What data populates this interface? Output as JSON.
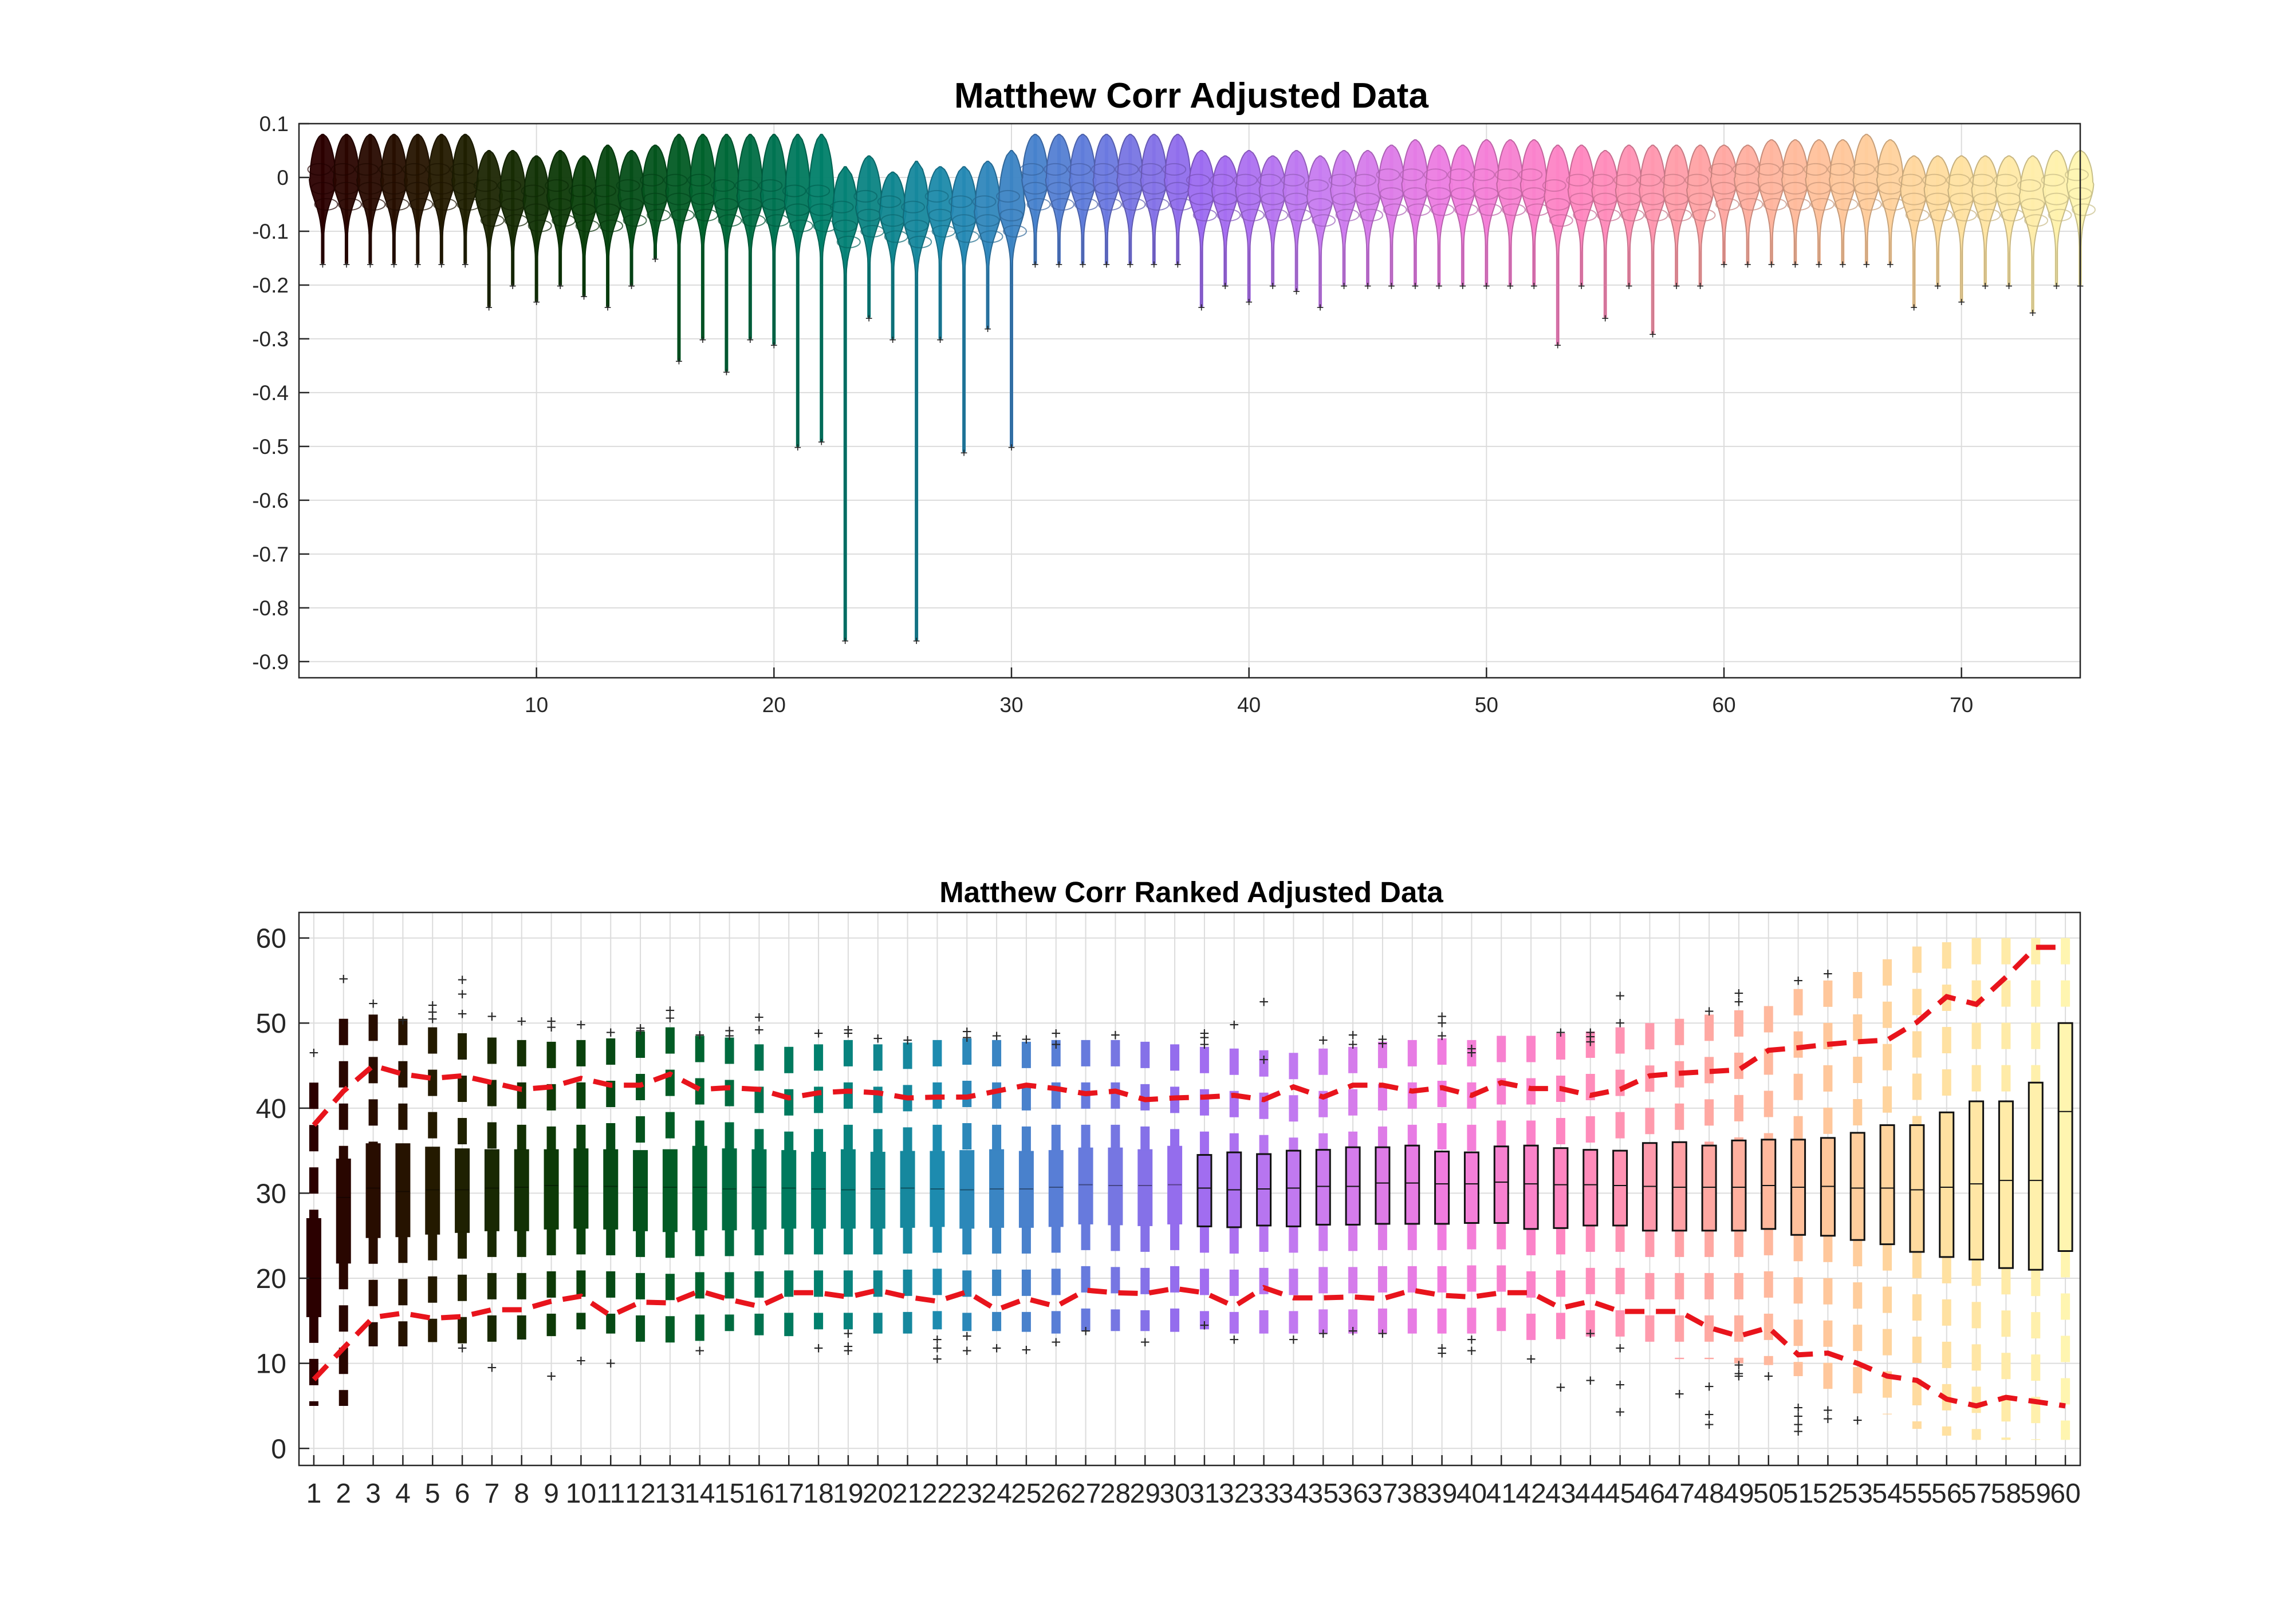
{
  "chart_data": [
    {
      "type": "violin",
      "title": "Matthew Corr Adjusted Data",
      "xlabel": "",
      "ylabel": "",
      "xlim": [
        0,
        75
      ],
      "ylim": [
        -0.93,
        0.1
      ],
      "xticks": [
        10,
        20,
        30,
        40,
        50,
        60,
        70
      ],
      "yticks": [
        0.1,
        0,
        -0.1,
        -0.2,
        -0.3,
        -0.4,
        -0.5,
        -0.6,
        -0.7,
        -0.8,
        -0.9
      ],
      "grid": true,
      "colormap": [
        "#2b0000",
        "#241b00",
        "#0a3d08",
        "#00612a",
        "#00806b",
        "#1e8bb0",
        "#5c7dd9",
        "#9c6bf0",
        "#c97cf0",
        "#f07ce0",
        "#ff86c0",
        "#ffa3a3",
        "#ffc49a",
        "#ffe0a0",
        "#fff5b0"
      ],
      "x": [
        1,
        2,
        3,
        4,
        5,
        6,
        7,
        8,
        9,
        10,
        11,
        12,
        13,
        14,
        15,
        16,
        17,
        18,
        19,
        20,
        21,
        22,
        23,
        24,
        25,
        26,
        27,
        28,
        29,
        30,
        31,
        32,
        33,
        34,
        35,
        36,
        37,
        38,
        39,
        40,
        41,
        42,
        43,
        44,
        45,
        46,
        47,
        48,
        49,
        50,
        51,
        52,
        53,
        54,
        55,
        56,
        57,
        58,
        59,
        60,
        61,
        62,
        63,
        64,
        65,
        66,
        67,
        68,
        69,
        70,
        71,
        72,
        73,
        74,
        75
      ],
      "max": [
        0.08,
        0.08,
        0.08,
        0.08,
        0.08,
        0.08,
        0.08,
        0.05,
        0.05,
        0.04,
        0.05,
        0.04,
        0.06,
        0.05,
        0.06,
        0.08,
        0.08,
        0.08,
        0.08,
        0.08,
        0.08,
        0.08,
        0.02,
        0.04,
        0.01,
        0.03,
        0.02,
        0.02,
        0.03,
        0.05,
        0.08,
        0.08,
        0.08,
        0.08,
        0.08,
        0.08,
        0.08,
        0.05,
        0.04,
        0.05,
        0.04,
        0.05,
        0.04,
        0.05,
        0.05,
        0.06,
        0.07,
        0.06,
        0.06,
        0.07,
        0.07,
        0.07,
        0.06,
        0.06,
        0.05,
        0.06,
        0.06,
        0.06,
        0.06,
        0.06,
        0.06,
        0.07,
        0.07,
        0.07,
        0.07,
        0.08,
        0.07,
        0.04,
        0.04,
        0.04,
        0.04,
        0.04,
        0.04,
        0.05,
        0.05
      ],
      "min": [
        -0.16,
        -0.16,
        -0.16,
        -0.16,
        -0.16,
        -0.16,
        -0.16,
        -0.24,
        -0.2,
        -0.23,
        -0.2,
        -0.22,
        -0.24,
        -0.2,
        -0.15,
        -0.34,
        -0.3,
        -0.36,
        -0.3,
        -0.31,
        -0.5,
        -0.49,
        -0.86,
        -0.26,
        -0.3,
        -0.86,
        -0.3,
        -0.51,
        -0.28,
        -0.5,
        -0.16,
        -0.16,
        -0.16,
        -0.16,
        -0.16,
        -0.16,
        -0.16,
        -0.24,
        -0.2,
        -0.23,
        -0.2,
        -0.21,
        -0.24,
        -0.2,
        -0.2,
        -0.2,
        -0.2,
        -0.2,
        -0.2,
        -0.2,
        -0.2,
        -0.2,
        -0.31,
        -0.2,
        -0.26,
        -0.2,
        -0.29,
        -0.2,
        -0.2,
        -0.16,
        -0.16,
        -0.16,
        -0.16,
        -0.16,
        -0.16,
        -0.16,
        -0.16,
        -0.24,
        -0.2,
        -0.23,
        -0.2,
        -0.2,
        -0.25,
        -0.2,
        -0.2
      ],
      "median": [
        0.0,
        0.0,
        0.0,
        0.0,
        0.0,
        0.0,
        0.0,
        -0.03,
        -0.03,
        -0.04,
        -0.03,
        -0.04,
        -0.04,
        -0.03,
        -0.02,
        -0.02,
        -0.02,
        -0.03,
        -0.03,
        -0.03,
        -0.04,
        -0.04,
        -0.07,
        -0.05,
        -0.06,
        -0.07,
        -0.05,
        -0.06,
        -0.06,
        -0.05,
        0.0,
        0.0,
        0.0,
        0.0,
        0.0,
        0.0,
        0.0,
        -0.02,
        -0.02,
        -0.02,
        -0.02,
        -0.02,
        -0.03,
        -0.02,
        -0.02,
        -0.01,
        -0.01,
        -0.01,
        -0.01,
        -0.01,
        -0.01,
        -0.01,
        -0.03,
        -0.02,
        -0.02,
        -0.02,
        -0.02,
        -0.02,
        -0.02,
        0.0,
        0.0,
        0.0,
        0.0,
        0.0,
        0.0,
        0.0,
        0.0,
        -0.02,
        -0.02,
        -0.02,
        -0.02,
        -0.02,
        -0.03,
        -0.02,
        -0.01
      ]
    },
    {
      "type": "boxplot",
      "title": "Matthew Corr Ranked Adjusted Data",
      "xlabel": "",
      "ylabel": "",
      "xlim": [
        0.5,
        60.5
      ],
      "ylim": [
        -2,
        63
      ],
      "yticks": [
        0,
        10,
        20,
        30,
        40,
        50,
        60
      ],
      "grid": true,
      "categories": [
        "1",
        "2",
        "3",
        "4",
        "5",
        "6",
        "7",
        "8",
        "9",
        "10",
        "11",
        "12",
        "13",
        "14",
        "15",
        "16",
        "17",
        "18",
        "19",
        "20",
        "21",
        "22",
        "23",
        "24",
        "25",
        "26",
        "27",
        "28",
        "29",
        "30",
        "31",
        "32",
        "33",
        "34",
        "35",
        "36",
        "37",
        "38",
        "39",
        "40",
        "41",
        "42",
        "43",
        "44",
        "45",
        "46",
        "47",
        "48",
        "49",
        "50",
        "51",
        "52",
        "53",
        "54",
        "55",
        "56",
        "57",
        "58",
        "59",
        "60"
      ],
      "q1": [
        15.5,
        21.8,
        24.8,
        24.9,
        25.2,
        25.4,
        25.6,
        25.6,
        25.8,
        25.9,
        25.8,
        25.6,
        25.5,
        25.7,
        25.7,
        25.8,
        25.9,
        25.9,
        25.9,
        25.9,
        26,
        26.1,
        25.9,
        26,
        26,
        26.1,
        26.4,
        26.3,
        26.2,
        26.4,
        26.1,
        26,
        26.2,
        26.1,
        26.3,
        26.3,
        26.4,
        26.4,
        26.4,
        26.5,
        26.5,
        25.8,
        25.9,
        26.2,
        26.2,
        25.6,
        25.6,
        25.6,
        25.6,
        25.8,
        25.1,
        25,
        24.5,
        24,
        23.1,
        22.5,
        22.2,
        21.2,
        21,
        23.2
      ],
      "median": [
        20,
        29.5,
        30.6,
        30.2,
        30.4,
        30.4,
        30.6,
        30.7,
        30.9,
        30.8,
        30.8,
        30.7,
        30.7,
        30.7,
        30.5,
        30.7,
        30.6,
        30.5,
        30.4,
        30.5,
        30.6,
        30.5,
        30.4,
        30.5,
        30.5,
        30.7,
        31,
        30.9,
        30.9,
        31,
        30.6,
        30.4,
        30.5,
        30.6,
        30.8,
        30.8,
        31.2,
        31.2,
        31.1,
        31.1,
        31.3,
        31.1,
        31,
        31,
        30.9,
        30.8,
        30.7,
        30.7,
        30.7,
        30.9,
        30.7,
        30.8,
        30.6,
        30.6,
        30.4,
        30.7,
        31.1,
        31.5,
        31.5,
        39.6
      ],
      "q3": [
        27,
        34,
        35.8,
        35.8,
        35.4,
        35.2,
        35.1,
        35.1,
        35.1,
        35.2,
        35.1,
        35,
        35.1,
        35.5,
        35.2,
        35.1,
        35,
        34.8,
        35.1,
        34.8,
        34.9,
        34.9,
        35,
        35.1,
        34.9,
        35,
        35.3,
        35.3,
        35.1,
        35.5,
        34.5,
        34.8,
        34.6,
        35,
        35.1,
        35.4,
        35.4,
        35.6,
        34.9,
        34.8,
        35.5,
        35.6,
        35.3,
        35.1,
        35,
        35.9,
        36,
        35.6,
        36.2,
        36.3,
        36.3,
        36.5,
        37.1,
        38,
        38,
        39.5,
        40.8,
        40.8,
        43,
        50
      ],
      "whislo": [
        5,
        5,
        12,
        12,
        12.5,
        12.3,
        12.5,
        12.8,
        13.2,
        14,
        13.5,
        12.3,
        11.5,
        12.5,
        13.8,
        13.3,
        13.2,
        14,
        14,
        13.5,
        13.5,
        14,
        13.8,
        13.8,
        13.7,
        13.5,
        13.8,
        13.8,
        13.8,
        13.7,
        14,
        13.5,
        13.5,
        13.5,
        13.5,
        13.5,
        13.5,
        13.5,
        13.5,
        13.5,
        13.8,
        12.5,
        12,
        12,
        11.8,
        11.8,
        10.5,
        10.5,
        10,
        9.8,
        8.5,
        7,
        5.5,
        4,
        2.3,
        1.5,
        1,
        1,
        1,
        1
      ],
      "whishi": [
        43,
        50.5,
        51,
        50.5,
        49.5,
        48.8,
        48.3,
        48,
        47.8,
        48,
        48.2,
        49,
        49.5,
        48.5,
        48.3,
        47.5,
        47.2,
        47.5,
        48,
        47.5,
        47.7,
        48,
        48.2,
        48,
        47.8,
        48,
        48,
        48,
        47.8,
        47.5,
        47.2,
        47,
        46.8,
        46.5,
        47,
        47.2,
        47.8,
        48,
        48.2,
        48,
        48.5,
        48.5,
        48.8,
        49,
        49.5,
        50,
        50.5,
        51,
        51.5,
        52,
        54,
        55,
        56,
        57.5,
        59,
        59.5,
        60,
        60,
        60,
        60
      ],
      "outliers": [
        [
          46.5
        ],
        [
          55.2
        ],
        [
          52.3
        ],
        [
          50.3
        ],
        [
          52.1,
          51.3,
          50.5
        ],
        [
          55.1,
          53.4,
          51.1,
          11.8
        ],
        [
          50.8,
          9.5
        ],
        [
          50.2
        ],
        [
          50.2,
          49.5,
          8.5
        ],
        [
          49.8,
          10.3
        ],
        [
          48.9,
          10
        ],
        [
          49.4,
          49.1
        ],
        [
          51.5,
          50.6
        ],
        [
          48.6,
          11.5
        ],
        [
          49.1,
          48.5
        ],
        [
          50.7,
          49.2
        ],
        [],
        [
          48.8,
          11.8
        ],
        [
          49.2,
          48.8,
          13.5,
          12,
          11.5
        ],
        [
          48.2
        ],
        [
          48
        ],
        [
          12.8,
          11.8,
          10.5
        ],
        [
          49,
          48.3,
          13.2,
          11.5
        ],
        [
          48.5,
          11.8
        ],
        [
          48.1,
          11.6
        ],
        [
          48.8,
          47.5,
          12.5
        ],
        [
          13.8
        ],
        [
          48.6
        ],
        [
          12.5
        ],
        [],
        [
          48.8,
          48.3,
          47.5,
          14.5
        ],
        [
          49.8,
          12.8
        ],
        [
          52.5,
          45.7
        ],
        [
          12.8
        ],
        [
          48,
          13.5
        ],
        [
          48.6,
          47.5,
          13.8
        ],
        [
          48.1,
          47.6,
          13.5
        ],
        [],
        [
          50.8,
          50,
          48.5,
          11.8,
          11.2
        ],
        [
          47,
          46.5,
          12.8,
          11.5
        ],
        [],
        [
          10.5
        ],
        [
          48.9,
          7.2
        ],
        [
          48.9,
          48.4,
          47.8,
          13.5,
          8
        ],
        [
          53.2,
          50,
          11.8,
          7.5,
          4.3
        ],
        [],
        [
          6.4
        ],
        [
          51.4,
          7.3,
          4,
          2.8
        ],
        [
          53.5,
          52.5,
          9.8,
          8.8,
          8.5
        ],
        [
          8.5
        ],
        [
          55,
          4.8,
          3.8,
          2.8,
          2
        ],
        [
          55.8,
          4.5,
          3.5
        ],
        [
          3.3
        ],
        [],
        [],
        [],
        [],
        [],
        [],
        []
      ],
      "percentile_upper": [
        38,
        42,
        45,
        44,
        43.5,
        43.8,
        43,
        42.2,
        42.5,
        43.5,
        42.7,
        42.7,
        44,
        42.2,
        42.4,
        42.2,
        41.2,
        41.8,
        42,
        41.8,
        41.2,
        41.3,
        41.3,
        42,
        42.7,
        42.3,
        41.7,
        42,
        41,
        41.2,
        41.3,
        41.5,
        41,
        42.5,
        41.3,
        42.7,
        42.7,
        42,
        42.4,
        41.5,
        43,
        42.3,
        42.3,
        41.5,
        42.2,
        43.8,
        44.1,
        44.3,
        44.5,
        46.8,
        47.1,
        47.5,
        47.8,
        48,
        50.1,
        53.1,
        52.2,
        55.4,
        58.9,
        58.9
      ],
      "percentile_lower": [
        8.1,
        11.8,
        15.4,
        15.9,
        15.3,
        15.5,
        16.3,
        16.3,
        17.3,
        17.9,
        15.6,
        17.2,
        17.1,
        18.5,
        17.5,
        16.7,
        18.3,
        18.3,
        17.8,
        18.6,
        17.8,
        17.3,
        18.4,
        16.3,
        17.6,
        16.7,
        18.6,
        18.3,
        18.2,
        18.8,
        18.3,
        16.7,
        18.9,
        17.7,
        17.7,
        17.8,
        17.6,
        18.6,
        18,
        17.8,
        18.3,
        18.3,
        16.5,
        17.3,
        16.1,
        16.1,
        16.1,
        14.2,
        13.2,
        14.2,
        11,
        11.2,
        10,
        8.5,
        8,
        5.8,
        5,
        6,
        5.5,
        5
      ]
    }
  ]
}
